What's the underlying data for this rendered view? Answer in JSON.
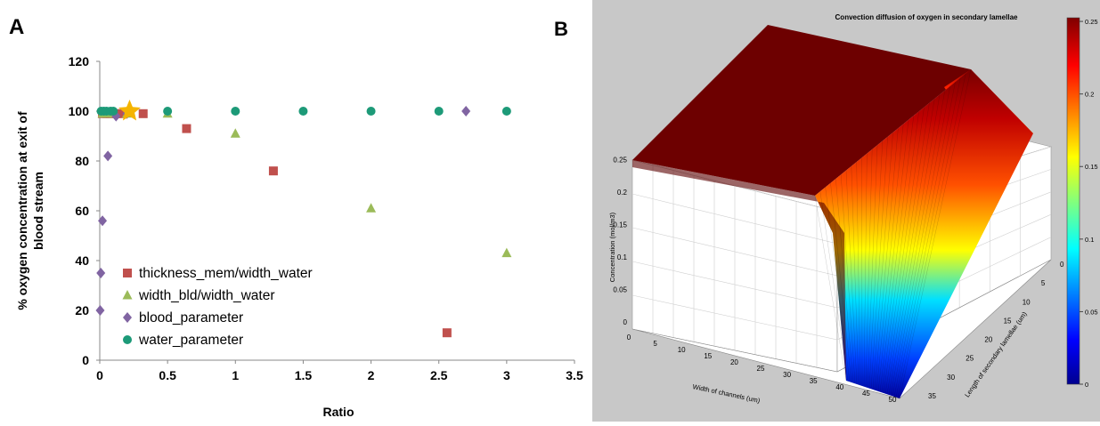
{
  "panels": {
    "a_label": "A",
    "b_label": "B"
  },
  "chart_data": [
    {
      "type": "scatter",
      "title": "",
      "xlabel": "Ratio",
      "ylabel_lines": [
        "% oxygen concentration at exit of",
        "blood stream"
      ],
      "xlim": [
        0,
        3.5
      ],
      "ylim": [
        0,
        120
      ],
      "xticks": [
        "0",
        "0.5",
        "1",
        "1.5",
        "2",
        "2.5",
        "3",
        "3.5"
      ],
      "xtick_values": [
        0,
        0.5,
        1,
        1.5,
        2,
        2.5,
        3,
        3.5
      ],
      "yticks": [
        "0",
        "20",
        "40",
        "60",
        "80",
        "100",
        "120"
      ],
      "ytick_values": [
        0,
        20,
        40,
        60,
        80,
        100,
        120
      ],
      "grid": false,
      "legend_position": "bottom-left",
      "series": [
        {
          "name": "thickness_mem/width_water",
          "marker": "square",
          "color": "#c0504d",
          "points": [
            [
              0.02,
              99
            ],
            [
              0.05,
              99
            ],
            [
              0.08,
              99
            ],
            [
              0.12,
              99
            ],
            [
              0.16,
              99
            ],
            [
              0.32,
              99
            ],
            [
              0.64,
              93
            ],
            [
              1.28,
              76
            ],
            [
              2.56,
              11
            ]
          ]
        },
        {
          "name": "width_bld/width_water",
          "marker": "triangle",
          "color": "#9bbb59",
          "points": [
            [
              0.02,
              99
            ],
            [
              0.05,
              99
            ],
            [
              0.1,
              99
            ],
            [
              0.2,
              99
            ],
            [
              0.5,
              99
            ],
            [
              1,
              91
            ],
            [
              2,
              61
            ],
            [
              3,
              43
            ]
          ]
        },
        {
          "name": "blood_parameter",
          "marker": "diamond",
          "color": "#8064a2",
          "points": [
            [
              0.003,
              20
            ],
            [
              0.008,
              35
            ],
            [
              0.02,
              56
            ],
            [
              0.06,
              82
            ],
            [
              0.12,
              98
            ],
            [
              0.2,
              99
            ],
            [
              2.7,
              100
            ]
          ]
        },
        {
          "name": "water_parameter",
          "marker": "circle",
          "color": "#1d9a78",
          "points": [
            [
              0.01,
              100
            ],
            [
              0.03,
              100
            ],
            [
              0.05,
              100
            ],
            [
              0.08,
              100
            ],
            [
              0.1,
              100
            ],
            [
              0.5,
              100
            ],
            [
              1,
              100
            ],
            [
              1.5,
              100
            ],
            [
              2,
              100
            ],
            [
              2.5,
              100
            ],
            [
              3,
              100
            ]
          ]
        }
      ],
      "highlight": {
        "marker": "star",
        "color": "#f5b400",
        "point": [
          0.22,
          100
        ]
      }
    },
    {
      "type": "surface",
      "title": "Convection diffusion of oxygen in secondary lamellae",
      "xlabel": "Width of channels (um)",
      "ylabel": "Length of secondary lamellae (um)",
      "zlabel": "Concentration (mol/m3)",
      "xticks": [
        "0",
        "5",
        "10",
        "15",
        "20",
        "25",
        "30",
        "35",
        "40",
        "45",
        "50"
      ],
      "yticks": [
        "0",
        "5",
        "10",
        "15",
        "20",
        "25",
        "30",
        "35"
      ],
      "zticks": [
        "0",
        "0.05",
        "0.1",
        "0.15",
        "0.2",
        "0.25"
      ],
      "colorbar_ticks": [
        "0",
        "0.05",
        "0.1",
        "0.15",
        "0.2",
        "0.25"
      ],
      "colormap": [
        "#00008f",
        "#0000ff",
        "#00ffff",
        "#ffff00",
        "#ff0000",
        "#800000"
      ],
      "zlim": [
        0,
        0.25
      ]
    }
  ]
}
